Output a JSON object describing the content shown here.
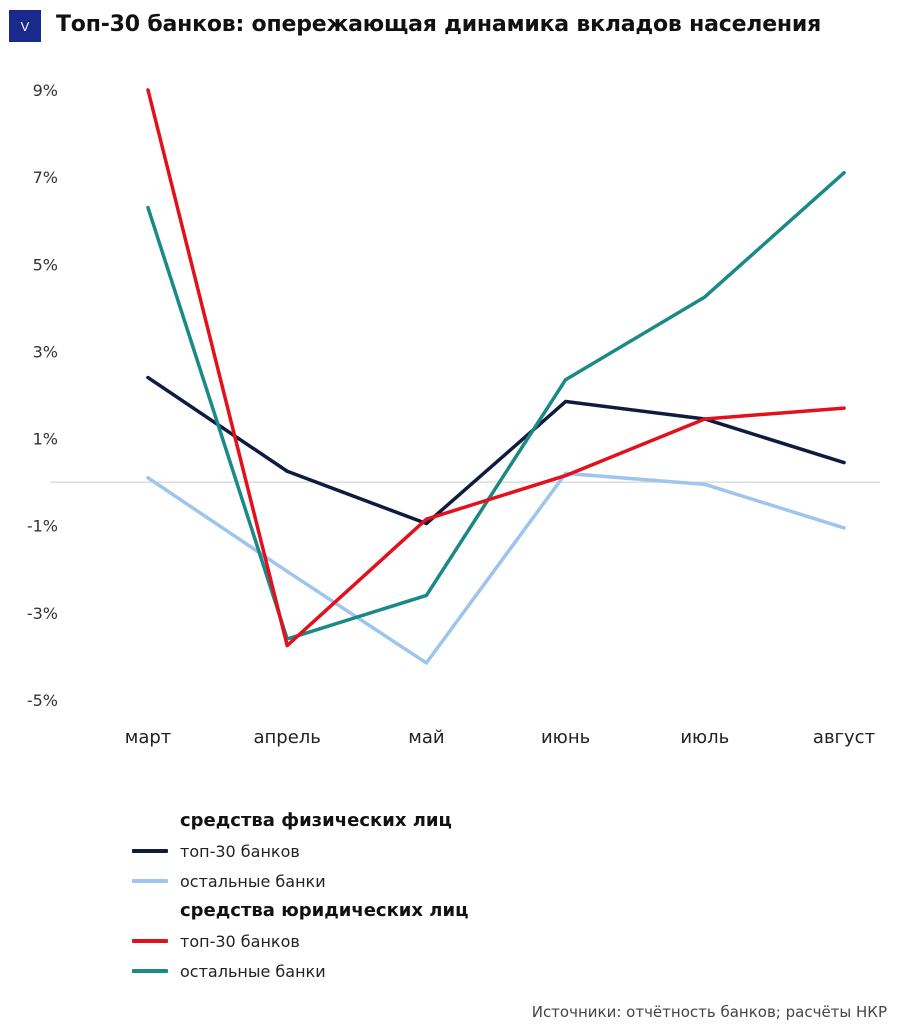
{
  "header": {
    "logo_text": "V",
    "title": "Топ-30 банков: опережающая динамика вкладов населения"
  },
  "colors": {
    "logo_bg": "#1a2a8c",
    "fiz_top30": "#0f1c3f",
    "fiz_other": "#9fc4ee",
    "yur_top30": "#e3101e",
    "yur_other": "#1a8a86",
    "zero_line": "#d6d6d6"
  },
  "chart_data": {
    "type": "line",
    "categories": [
      "март",
      "апрель",
      "май",
      "июнь",
      "июль",
      "август"
    ],
    "ylim": [
      -5,
      9
    ],
    "yticks": [
      9,
      7,
      5,
      3,
      1,
      -1,
      -3,
      -5
    ],
    "ytick_labels": [
      "9%",
      "7%",
      "5%",
      "3%",
      "1%",
      "-1%",
      "-3%",
      "-5%"
    ],
    "zero_line": true,
    "legend_placement": "bottom-left",
    "groups": [
      {
        "title": "средства физических лиц",
        "series_index": [
          0,
          1
        ]
      },
      {
        "title": "средства юридических лиц",
        "series_index": [
          2,
          3
        ]
      }
    ],
    "series": [
      {
        "name": "топ-30 банков",
        "group": "средства физических лиц",
        "color": "#0f1c3f",
        "values": [
          2.4,
          0.25,
          -0.95,
          1.85,
          1.45,
          0.45
        ]
      },
      {
        "name": "остальные банки",
        "group": "средства физических лиц",
        "color": "#9fc4ee",
        "values": [
          0.1,
          -2.05,
          -4.15,
          0.2,
          -0.05,
          -1.05
        ]
      },
      {
        "name": "топ-30 банков",
        "group": "средства юридических лиц",
        "color": "#e3101e",
        "values": [
          9.0,
          -3.75,
          -0.85,
          0.15,
          1.45,
          1.7
        ]
      },
      {
        "name": "остальные банки",
        "group": "средства юридических лиц",
        "color": "#1a8a86",
        "values": [
          6.3,
          -3.6,
          -2.6,
          2.35,
          4.25,
          7.1
        ]
      }
    ]
  },
  "source": "Источники: отчётность банков; расчёты НКР"
}
